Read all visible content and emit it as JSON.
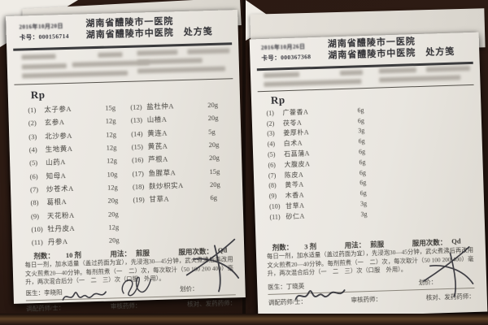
{
  "colors": {
    "background": "#2a1812",
    "paper": "#eae7e1",
    "ink": "#3c3a36",
    "signature_ink": "#23232c"
  },
  "left": {
    "date": "2016年10月20日",
    "card_label": "卡号：",
    "card_no": "000156714",
    "hospital_line1": "湖南省醴陵市一医院",
    "hospital_line2": "湖南省醴陵市中医院",
    "form_title": "处方笺",
    "rp": "Rp",
    "items_col1": [
      {
        "no": "(1)",
        "name": "太子参A",
        "qty": "15g"
      },
      {
        "no": "(2)",
        "name": "玄参A",
        "qty": "12g"
      },
      {
        "no": "(3)",
        "name": "北沙参A",
        "qty": "12g"
      },
      {
        "no": "(4)",
        "name": "生地黄A",
        "qty": "12g"
      },
      {
        "no": "(5)",
        "name": "山药A",
        "qty": "12g"
      },
      {
        "no": "(6)",
        "name": "知母A",
        "qty": "10g"
      },
      {
        "no": "(7)",
        "name": "炒苍术A",
        "qty": "12g"
      },
      {
        "no": "(8)",
        "name": "葛根A",
        "qty": "20g"
      },
      {
        "no": "(9)",
        "name": "天花粉A",
        "qty": "20g"
      },
      {
        "no": "(10)",
        "name": "牡丹皮A",
        "qty": "12g"
      },
      {
        "no": "(11)",
        "name": "丹参A",
        "qty": "20g"
      }
    ],
    "items_col2": [
      {
        "no": "(12)",
        "name": "盐杜仲A",
        "qty": "20g"
      },
      {
        "no": "(13)",
        "name": "山楂A",
        "qty": "20g"
      },
      {
        "no": "(14)",
        "name": "黄连A",
        "qty": "5g"
      },
      {
        "no": "(15)",
        "name": "黄芪A",
        "qty": "20g"
      },
      {
        "no": "(16)",
        "name": "芦根A",
        "qty": "20g"
      },
      {
        "no": "(17)",
        "name": "鱼腥草A",
        "qty": "15g"
      },
      {
        "no": "(18)",
        "name": "麸炒枳实A",
        "qty": "20g"
      },
      {
        "no": "(19)",
        "name": "甘草A",
        "qty": "6g"
      }
    ],
    "dose_label": "剂数：",
    "dose_value": "10 剂",
    "usage_label": "用法：",
    "usage_value": "煎服",
    "freq_label": "服用次数：",
    "freq_value": "Qd",
    "instructions": "每日一剂，加水适量（盖过药面为宜），先浸泡30—45分钟，武火煮沸后再改用文火煎煮20—40分钟。每剂煎煮（一　二）次，每次取汁（50 100 200 400）毫升，两次混合后分（一　二　三）次（口服　外用）。",
    "doctor_label": "医生：",
    "doctor": "李晓阳",
    "pricing_label": "划价：",
    "dispenser_label": "调配药师/士：",
    "reviewer_label": "审核药师：",
    "checker_label": "核对、发药药师："
  },
  "right": {
    "date": "2016年10月26日",
    "card_label": "卡号：",
    "card_no": "000367368",
    "hospital_line1": "湖南省醴陵市一医院",
    "hospital_line2": "湖南省醴陵市中医院",
    "form_title": "处方笺",
    "rp": "Rp",
    "items": [
      {
        "no": "(1)",
        "name": "广藿香A",
        "qty": "6g"
      },
      {
        "no": "(2)",
        "name": "茯苓A",
        "qty": "6g"
      },
      {
        "no": "(3)",
        "name": "姜厚朴A",
        "qty": "3g"
      },
      {
        "no": "(4)",
        "name": "白术A",
        "qty": "6g"
      },
      {
        "no": "(5)",
        "name": "石菖蒲A",
        "qty": "6g"
      },
      {
        "no": "(6)",
        "name": "大腹皮A",
        "qty": "6g"
      },
      {
        "no": "(7)",
        "name": "陈皮A",
        "qty": "6g"
      },
      {
        "no": "(8)",
        "name": "黄芩A",
        "qty": "6g"
      },
      {
        "no": "(9)",
        "name": "木香A",
        "qty": "6g"
      },
      {
        "no": "(10)",
        "name": "甘草A",
        "qty": "3g"
      },
      {
        "no": "(11)",
        "name": "砂仁A",
        "qty": "3g"
      }
    ],
    "dose_label": "剂数：",
    "dose_value": "3 剂",
    "usage_label": "用法：",
    "usage_value": "煎服",
    "freq_label": "服用次数：",
    "freq_value": "Qd",
    "instructions": "每日一剂，加水适量（盖过药面为宜），先浸泡30—45分钟，武火煮沸后再改用文火煎煮20—40分钟。每剂煎煮（一　二）次，每次取汁（50 100 200 400）毫升，两次混合后分（一　二　三）次（口服　外用）。",
    "doctor_label": "医生：",
    "doctor": "丁晓英",
    "pricing_label": "划价：",
    "dispenser_label": "调配药师/士：",
    "reviewer_label": "审核药师：",
    "checker_label": "核对、发药药师："
  }
}
